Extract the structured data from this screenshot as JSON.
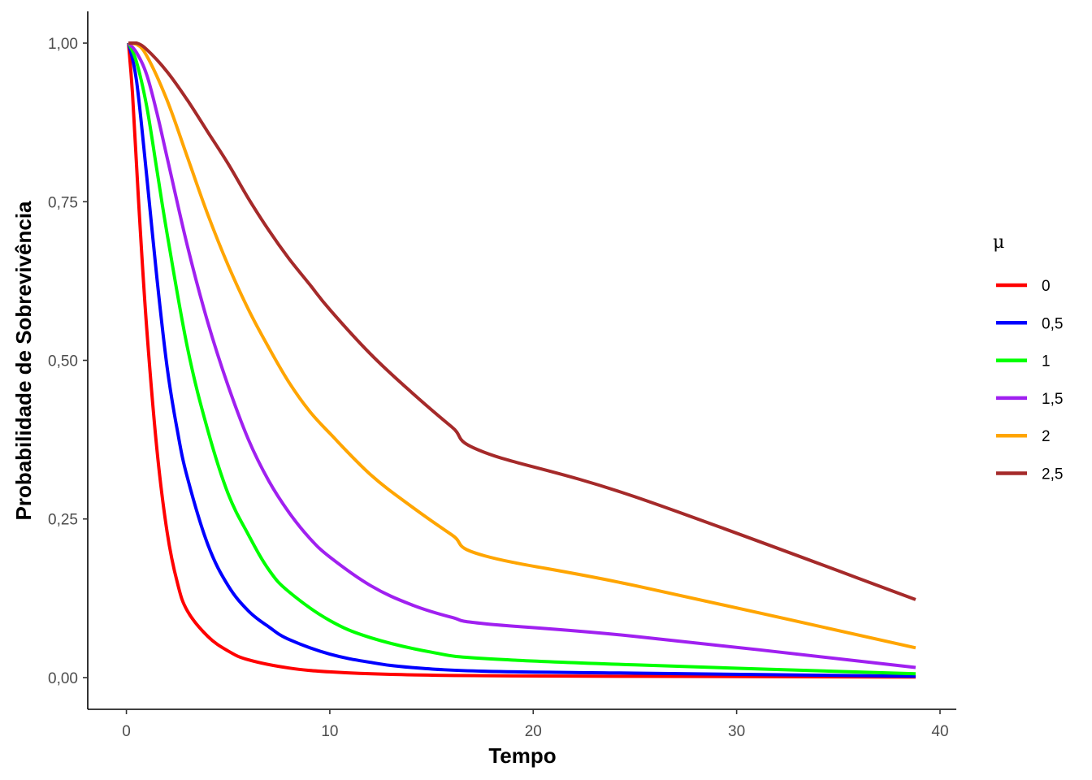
{
  "chart_data": {
    "type": "line",
    "title": "",
    "xlabel": "Tempo",
    "ylabel": "Probabilidade de Sobrevivência",
    "xlim": [
      -1.9,
      40.8
    ],
    "ylim": [
      -0.05,
      1.05
    ],
    "x_ticks": [
      0,
      10,
      20,
      30,
      40
    ],
    "x_tick_labels": [
      "0",
      "10",
      "20",
      "30",
      "40"
    ],
    "y_ticks": [
      0,
      0.25,
      0.5,
      0.75,
      1.0
    ],
    "y_tick_labels": [
      "0,00",
      "0,25",
      "0,50",
      "0,75",
      "1,00"
    ],
    "grid": false,
    "legend": {
      "title": "μ",
      "position": "right"
    },
    "series": [
      {
        "name": "0",
        "color": "#ff0000",
        "x": [
          0.1,
          0.3,
          0.6,
          1.0,
          1.5,
          2.0,
          2.5,
          3.0,
          4.0,
          5.0,
          6.0,
          8.0,
          10.0,
          13.0,
          17.6,
          25.0,
          38.8
        ],
        "y": [
          1.0,
          0.92,
          0.75,
          0.55,
          0.36,
          0.23,
          0.15,
          0.105,
          0.065,
          0.042,
          0.028,
          0.015,
          0.009,
          0.005,
          0.003,
          0.002,
          0.001
        ]
      },
      {
        "name": "0,5",
        "color": "#0000ff",
        "x": [
          0.1,
          0.5,
          1.0,
          1.5,
          2.0,
          2.5,
          3.0,
          4.0,
          5.0,
          6.0,
          7.0,
          8.0,
          10.0,
          12.0,
          14.0,
          17.6,
          25.0,
          38.8
        ],
        "y": [
          1.0,
          0.94,
          0.79,
          0.63,
          0.49,
          0.39,
          0.315,
          0.21,
          0.145,
          0.105,
          0.08,
          0.06,
          0.037,
          0.024,
          0.016,
          0.01,
          0.007,
          0.002
        ]
      },
      {
        "name": "1",
        "color": "#00ff00",
        "x": [
          0.1,
          0.5,
          1.0,
          1.5,
          2.0,
          3.0,
          4.0,
          5.0,
          6.0,
          7.0,
          8.0,
          10.0,
          12.0,
          15.0,
          17.6,
          25.0,
          38.8
        ],
        "y": [
          1.0,
          0.97,
          0.9,
          0.8,
          0.7,
          0.52,
          0.39,
          0.29,
          0.225,
          0.17,
          0.135,
          0.09,
          0.063,
          0.04,
          0.03,
          0.02,
          0.006
        ]
      },
      {
        "name": "1,5",
        "color": "#a020f0",
        "x": [
          0.1,
          0.5,
          1.0,
          1.5,
          2.0,
          3.0,
          4.0,
          5.0,
          6.0,
          7.0,
          8.0,
          9.0,
          10.0,
          12.0,
          14.0,
          16.0,
          17.6,
          25.0,
          38.8
        ],
        "y": [
          1.0,
          0.985,
          0.95,
          0.89,
          0.82,
          0.68,
          0.56,
          0.46,
          0.375,
          0.31,
          0.26,
          0.22,
          0.19,
          0.145,
          0.115,
          0.095,
          0.085,
          0.065,
          0.016
        ]
      },
      {
        "name": "2",
        "color": "#ffa500",
        "x": [
          0.1,
          0.5,
          1.0,
          2.0,
          3.0,
          4.0,
          5.0,
          6.0,
          7.0,
          8.0,
          9.0,
          10.0,
          12.0,
          14.0,
          16.0,
          17.6,
          25.0,
          38.8
        ],
        "y": [
          1.0,
          0.998,
          0.98,
          0.91,
          0.82,
          0.73,
          0.65,
          0.58,
          0.52,
          0.465,
          0.42,
          0.385,
          0.32,
          0.27,
          0.225,
          0.192,
          0.145,
          0.047
        ]
      },
      {
        "name": "2,5",
        "color": "#a52a2a",
        "x": [
          0.1,
          0.5,
          1.0,
          2.0,
          3.0,
          4.0,
          5.0,
          6.0,
          7.0,
          8.0,
          9.0,
          10.0,
          12.0,
          14.0,
          16.0,
          17.6,
          25.0,
          38.8
        ],
        "y": [
          1.0,
          1.0,
          0.99,
          0.955,
          0.91,
          0.86,
          0.81,
          0.755,
          0.705,
          0.66,
          0.62,
          0.58,
          0.51,
          0.45,
          0.395,
          0.355,
          0.285,
          0.123
        ]
      }
    ]
  }
}
